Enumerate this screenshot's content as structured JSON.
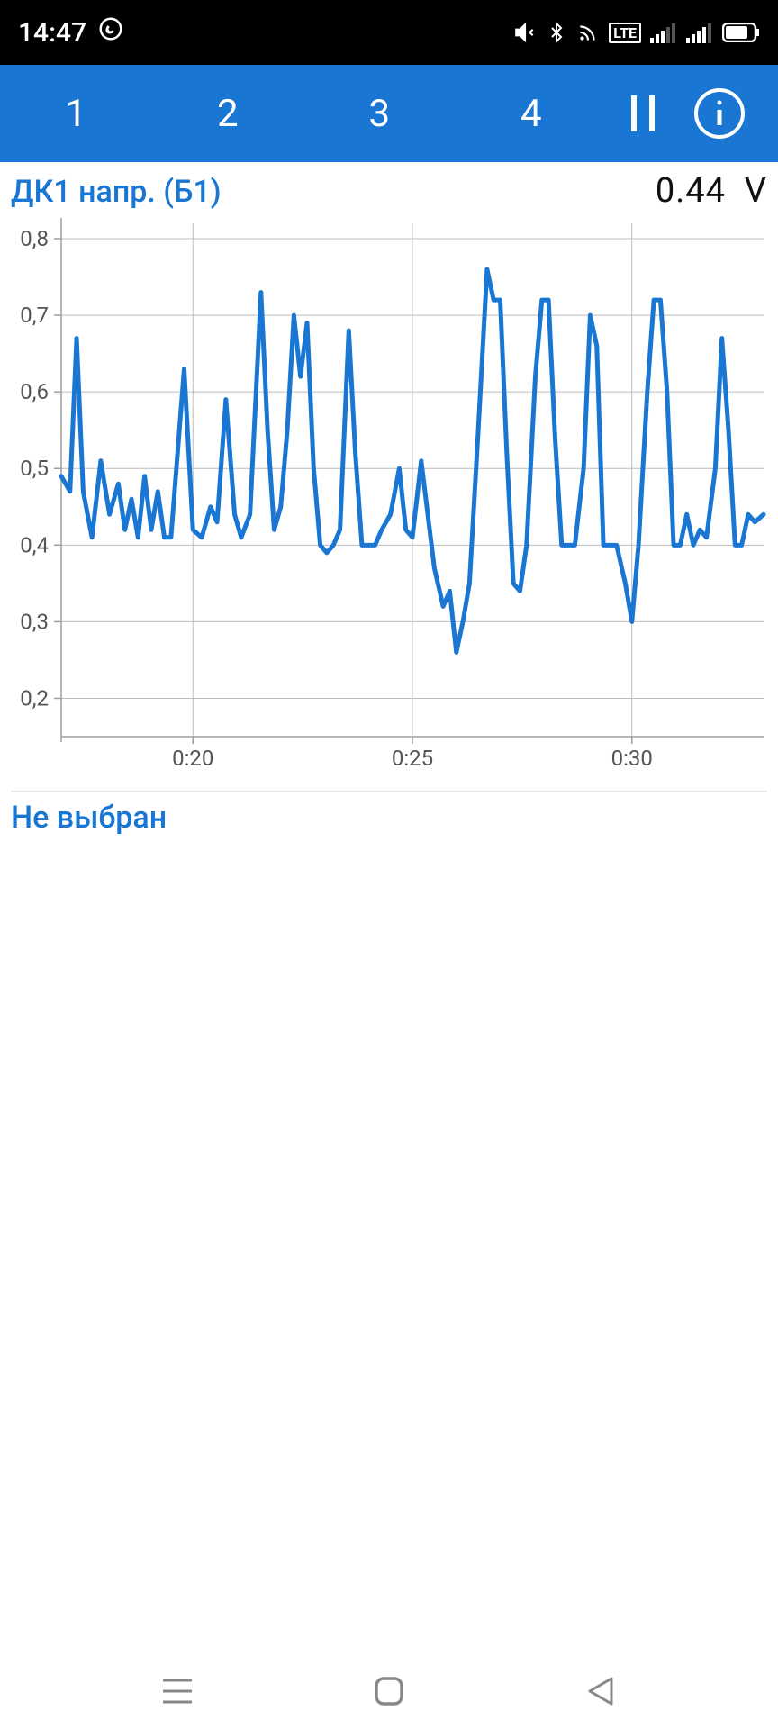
{
  "status_bar": {
    "time": "14:47",
    "bg": "#000000",
    "fg": "#ffffff"
  },
  "toolbar": {
    "bg": "#1976d2",
    "fg": "#ffffff",
    "tabs": [
      "1",
      "2",
      "3",
      "4"
    ]
  },
  "chart1": {
    "title": "ДК1 напр. (Б1)",
    "title_color": "#1976d2",
    "value": "0.44",
    "unit": "V",
    "value_color": "#111111",
    "type": "line",
    "line_color": "#1976d2",
    "line_width": 5,
    "background_color": "#ffffff",
    "grid_color": "#bdbdbd",
    "axis_color": "#9e9e9e",
    "label_color": "#555555",
    "label_fontsize": 24,
    "ylim": [
      0.15,
      0.82
    ],
    "ytick_values": [
      0.2,
      0.3,
      0.4,
      0.5,
      0.6,
      0.7,
      0.8
    ],
    "ytick_labels": [
      "0,2",
      "0,3",
      "0,4",
      "0,5",
      "0,6",
      "0,7",
      "0,8"
    ],
    "xlim": [
      17,
      33
    ],
    "xtick_values": [
      20,
      25,
      30
    ],
    "xtick_labels": [
      "0:20",
      "0:25",
      "0:30"
    ],
    "data": [
      [
        17.0,
        0.49
      ],
      [
        17.2,
        0.47
      ],
      [
        17.35,
        0.67
      ],
      [
        17.5,
        0.47
      ],
      [
        17.7,
        0.41
      ],
      [
        17.9,
        0.51
      ],
      [
        18.1,
        0.44
      ],
      [
        18.3,
        0.48
      ],
      [
        18.45,
        0.42
      ],
      [
        18.6,
        0.46
      ],
      [
        18.75,
        0.41
      ],
      [
        18.9,
        0.49
      ],
      [
        19.05,
        0.42
      ],
      [
        19.2,
        0.47
      ],
      [
        19.35,
        0.41
      ],
      [
        19.5,
        0.41
      ],
      [
        19.8,
        0.63
      ],
      [
        20.0,
        0.42
      ],
      [
        20.2,
        0.41
      ],
      [
        20.4,
        0.45
      ],
      [
        20.55,
        0.43
      ],
      [
        20.75,
        0.59
      ],
      [
        20.95,
        0.44
      ],
      [
        21.1,
        0.41
      ],
      [
        21.3,
        0.44
      ],
      [
        21.55,
        0.73
      ],
      [
        21.7,
        0.55
      ],
      [
        21.85,
        0.42
      ],
      [
        22.0,
        0.45
      ],
      [
        22.15,
        0.55
      ],
      [
        22.3,
        0.7
      ],
      [
        22.45,
        0.62
      ],
      [
        22.6,
        0.69
      ],
      [
        22.75,
        0.5
      ],
      [
        22.9,
        0.4
      ],
      [
        23.05,
        0.39
      ],
      [
        23.2,
        0.4
      ],
      [
        23.35,
        0.42
      ],
      [
        23.55,
        0.68
      ],
      [
        23.7,
        0.52
      ],
      [
        23.85,
        0.4
      ],
      [
        24.0,
        0.4
      ],
      [
        24.15,
        0.4
      ],
      [
        24.3,
        0.42
      ],
      [
        24.5,
        0.44
      ],
      [
        24.7,
        0.5
      ],
      [
        24.85,
        0.42
      ],
      [
        25.0,
        0.41
      ],
      [
        25.2,
        0.51
      ],
      [
        25.35,
        0.44
      ],
      [
        25.5,
        0.37
      ],
      [
        25.7,
        0.32
      ],
      [
        25.85,
        0.34
      ],
      [
        26.0,
        0.26
      ],
      [
        26.15,
        0.3
      ],
      [
        26.3,
        0.35
      ],
      [
        26.5,
        0.55
      ],
      [
        26.7,
        0.76
      ],
      [
        26.85,
        0.72
      ],
      [
        27.0,
        0.72
      ],
      [
        27.15,
        0.52
      ],
      [
        27.3,
        0.35
      ],
      [
        27.45,
        0.34
      ],
      [
        27.6,
        0.4
      ],
      [
        27.8,
        0.62
      ],
      [
        27.95,
        0.72
      ],
      [
        28.1,
        0.72
      ],
      [
        28.25,
        0.54
      ],
      [
        28.4,
        0.4
      ],
      [
        28.55,
        0.4
      ],
      [
        28.7,
        0.4
      ],
      [
        28.9,
        0.5
      ],
      [
        29.05,
        0.7
      ],
      [
        29.2,
        0.66
      ],
      [
        29.35,
        0.4
      ],
      [
        29.5,
        0.4
      ],
      [
        29.65,
        0.4
      ],
      [
        29.85,
        0.35
      ],
      [
        30.0,
        0.3
      ],
      [
        30.15,
        0.4
      ],
      [
        30.35,
        0.6
      ],
      [
        30.5,
        0.72
      ],
      [
        30.65,
        0.72
      ],
      [
        30.8,
        0.6
      ],
      [
        30.95,
        0.4
      ],
      [
        31.1,
        0.4
      ],
      [
        31.25,
        0.44
      ],
      [
        31.4,
        0.4
      ],
      [
        31.55,
        0.42
      ],
      [
        31.7,
        0.41
      ],
      [
        31.9,
        0.5
      ],
      [
        32.05,
        0.67
      ],
      [
        32.2,
        0.55
      ],
      [
        32.35,
        0.4
      ],
      [
        32.5,
        0.4
      ],
      [
        32.65,
        0.44
      ],
      [
        32.8,
        0.43
      ],
      [
        33.0,
        0.44
      ]
    ]
  },
  "chart2": {
    "title": "Не выбран",
    "title_color": "#1976d2"
  }
}
